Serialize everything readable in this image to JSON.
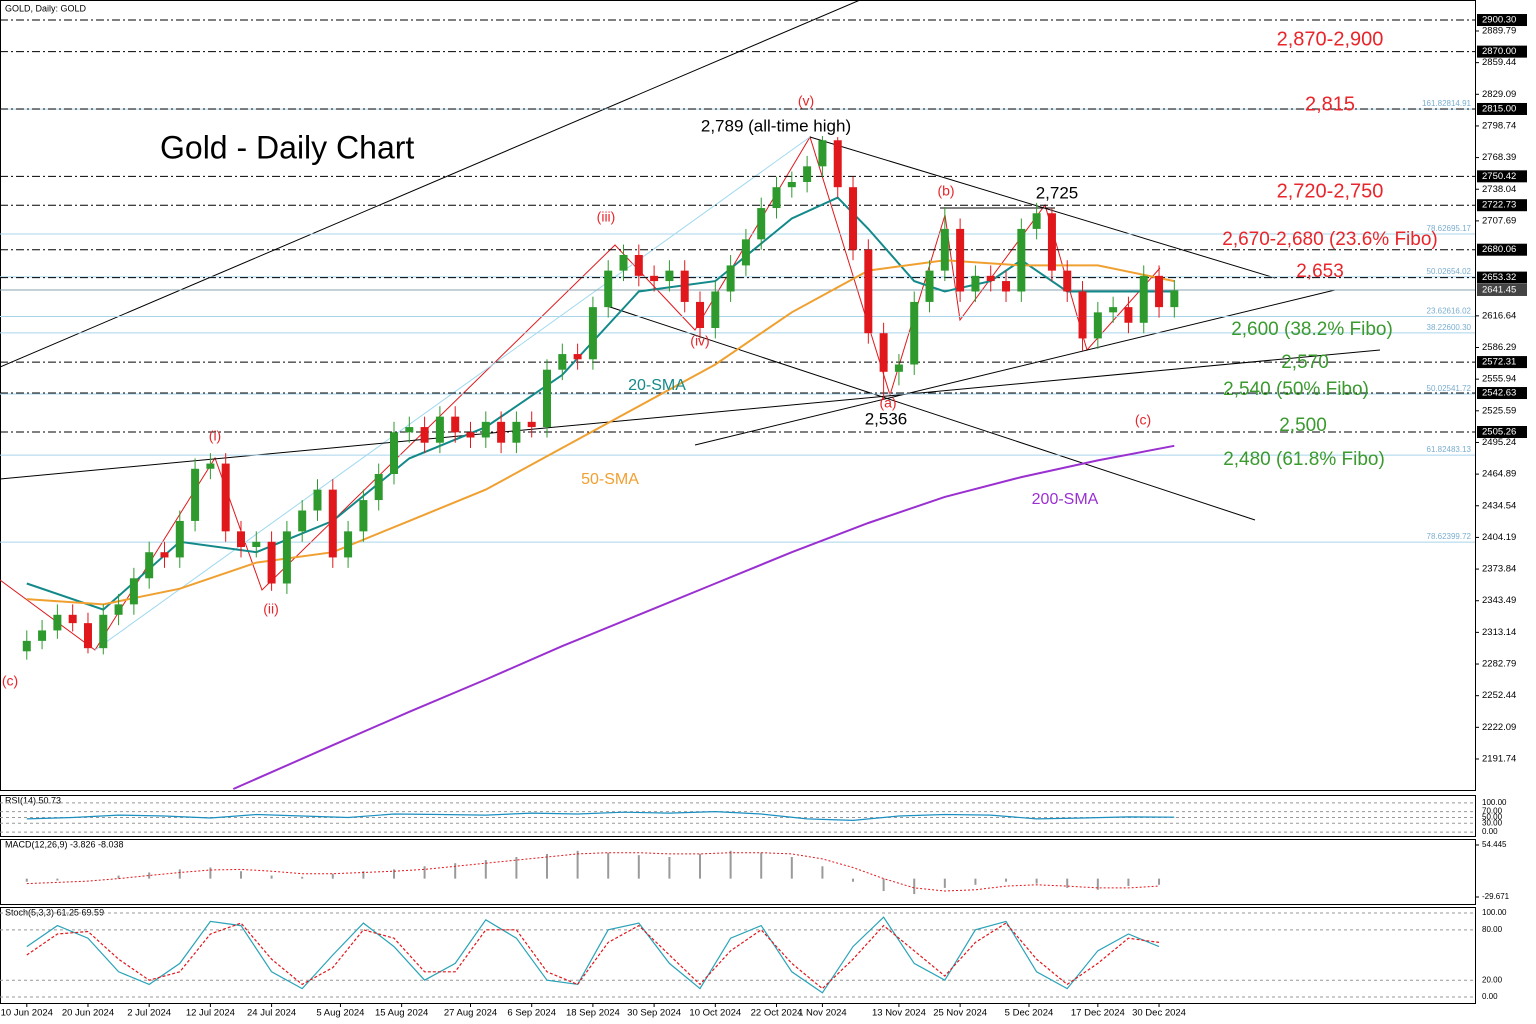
{
  "header": "GOLD, Daily: GOLD",
  "chart_data": [
    {
      "type": "candlestick",
      "title": "Gold - Daily Chart",
      "up_color": "#2e9a2e",
      "down_color": "#e0181c",
      "x": [
        0,
        2,
        4,
        6,
        8,
        10,
        12,
        14,
        16,
        18,
        20,
        22,
        24,
        26,
        28,
        30,
        32,
        34,
        36,
        38,
        40,
        42,
        44,
        46,
        48,
        50,
        52,
        54,
        56,
        58,
        60,
        62,
        64,
        66,
        68,
        70,
        72,
        74,
        76,
        78,
        80,
        82,
        84,
        86,
        88,
        90,
        92,
        94,
        96,
        98,
        100,
        102,
        104,
        106,
        108,
        110,
        112,
        114,
        116,
        118,
        120,
        122,
        124,
        126,
        128,
        130,
        132,
        134,
        136,
        138,
        140,
        142,
        144,
        146,
        148,
        150
      ],
      "open": [
        2295,
        2305,
        2315,
        2330,
        2322,
        2298,
        2330,
        2340,
        2365,
        2390,
        2385,
        2420,
        2470,
        2475,
        2410,
        2395,
        2400,
        2360,
        2410,
        2430,
        2450,
        2385,
        2410,
        2440,
        2465,
        2505,
        2510,
        2495,
        2520,
        2505,
        2500,
        2515,
        2495,
        2515,
        2510,
        2565,
        2580,
        2575,
        2625,
        2660,
        2675,
        2655,
        2650,
        2660,
        2630,
        2605,
        2640,
        2665,
        2690,
        2720,
        2740,
        2745,
        2760,
        2785,
        2740,
        2680,
        2600,
        2563,
        2570,
        2630,
        2660,
        2700,
        2640,
        2655,
        2650,
        2640,
        2700,
        2715,
        2660,
        2640,
        2595,
        2620,
        2625,
        2610,
        2655,
        2625
      ],
      "high": [
        2315,
        2325,
        2340,
        2340,
        2332,
        2340,
        2350,
        2375,
        2400,
        2400,
        2430,
        2480,
        2485,
        2485,
        2420,
        2410,
        2410,
        2420,
        2440,
        2460,
        2460,
        2420,
        2450,
        2475,
        2515,
        2520,
        2520,
        2530,
        2530,
        2515,
        2525,
        2525,
        2525,
        2525,
        2575,
        2590,
        2590,
        2635,
        2670,
        2685,
        2685,
        2665,
        2670,
        2670,
        2640,
        2650,
        2675,
        2700,
        2730,
        2750,
        2755,
        2770,
        2789,
        2788,
        2750,
        2690,
        2610,
        2580,
        2640,
        2670,
        2721,
        2710,
        2665,
        2665,
        2660,
        2710,
        2725,
        2720,
        2670,
        2650,
        2630,
        2635,
        2635,
        2665,
        2665,
        2651
      ],
      "low": [
        2287,
        2297,
        2307,
        2314,
        2293,
        2292,
        2320,
        2330,
        2355,
        2375,
        2375,
        2410,
        2460,
        2400,
        2385,
        2385,
        2353,
        2350,
        2400,
        2420,
        2375,
        2375,
        2400,
        2430,
        2455,
        2495,
        2485,
        2485,
        2495,
        2490,
        2490,
        2485,
        2485,
        2500,
        2500,
        2555,
        2565,
        2565,
        2615,
        2650,
        2645,
        2640,
        2640,
        2620,
        2595,
        2595,
        2630,
        2655,
        2680,
        2710,
        2730,
        2735,
        2750,
        2730,
        2670,
        2590,
        2536,
        2550,
        2560,
        2620,
        2650,
        2630,
        2630,
        2640,
        2630,
        2630,
        2690,
        2650,
        2630,
        2583,
        2585,
        2610,
        2600,
        2600,
        2615,
        2615
      ],
      "close": [
        2305,
        2315,
        2330,
        2322,
        2298,
        2330,
        2340,
        2365,
        2390,
        2385,
        2420,
        2470,
        2475,
        2410,
        2395,
        2400,
        2360,
        2410,
        2430,
        2450,
        2385,
        2410,
        2440,
        2465,
        2505,
        2510,
        2495,
        2520,
        2505,
        2500,
        2515,
        2495,
        2515,
        2510,
        2565,
        2580,
        2575,
        2625,
        2660,
        2675,
        2655,
        2650,
        2660,
        2630,
        2605,
        2640,
        2665,
        2690,
        2720,
        2740,
        2745,
        2760,
        2785,
        2740,
        2680,
        2600,
        2563,
        2570,
        2630,
        2660,
        2700,
        2640,
        2655,
        2650,
        2640,
        2700,
        2715,
        2660,
        2640,
        2595,
        2620,
        2625,
        2610,
        2655,
        2625,
        2641
      ],
      "xlim": [
        -3.5,
        189.3
      ],
      "xticks": [
        {
          "value": 0,
          "label": "10 Jun 2024"
        },
        {
          "value": 8,
          "label": "20 Jun 2024"
        },
        {
          "value": 16,
          "label": "2 Jul 2024"
        },
        {
          "value": 24,
          "label": "12 Jul 2024"
        },
        {
          "value": 32,
          "label": "24 Jul 2024"
        },
        {
          "value": 41,
          "label": "5 Aug 2024"
        },
        {
          "value": 49,
          "label": "15 Aug 2024"
        },
        {
          "value": 58,
          "label": "27 Aug 2024"
        },
        {
          "value": 66,
          "label": "6 Sep 2024"
        },
        {
          "value": 74,
          "label": "18 Sep 2024"
        },
        {
          "value": 82,
          "label": "30 Sep 2024"
        },
        {
          "value": 90,
          "label": "10 Oct 2024"
        },
        {
          "value": 98,
          "label": "22 Oct 2024"
        },
        {
          "value": 104,
          "label": "1 Nov 2024"
        },
        {
          "value": 114,
          "label": "13 Nov 2024"
        },
        {
          "value": 122,
          "label": "25 Nov 2024"
        },
        {
          "value": 131,
          "label": "5 Dec 2024"
        },
        {
          "value": 140,
          "label": "17 Dec 2024"
        },
        {
          "value": 148,
          "label": "30 Dec 2024"
        }
      ],
      "ylim": [
        2162,
        2914.7
      ],
      "yticks": [
        2889.79,
        2859.44,
        2829.09,
        2798.74,
        2768.39,
        2738.04,
        2707.69,
        2616.64,
        2586.29,
        2555.94,
        2525.59,
        2495.24,
        2464.89,
        2434.54,
        2404.19,
        2373.84,
        2343.49,
        2313.14,
        2282.79,
        2252.44,
        2222.09,
        2191.74
      ],
      "levels": [
        {
          "value": 2900.3,
          "label": "2900.30"
        },
        {
          "value": 2870,
          "label": "2870.00"
        },
        {
          "value": 2815,
          "label": "2815.00"
        },
        {
          "value": 2750.42,
          "label": "2750.42"
        },
        {
          "value": 2722.73,
          "label": "2722.73"
        },
        {
          "value": 2680.06,
          "label": "2680.06"
        },
        {
          "value": 2653.32,
          "label": "2653.32"
        },
        {
          "value": 2572.31,
          "label": "2572.31"
        },
        {
          "value": 2542.63,
          "label": "2542.63"
        },
        {
          "value": 2505.26,
          "label": "2505.26"
        }
      ],
      "current_price": {
        "value": 2641.45,
        "label": "2641.45"
      },
      "fibo": [
        {
          "pct": "161.8",
          "value": 2814.91
        },
        {
          "pct": "78.6",
          "value": 2695.17
        },
        {
          "pct": "50.0",
          "value": 2654.02
        },
        {
          "pct": "23.6",
          "value": 2616.02
        },
        {
          "pct": "38.2",
          "value": 2600.3,
          "value_label": "2600.30"
        },
        {
          "pct": "50.0",
          "value": 2541.72
        },
        {
          "pct": "61.8",
          "value": 2483.13
        },
        {
          "pct": "78.6",
          "value": 2399.72
        }
      ],
      "series": [
        {
          "name": "20-SMA",
          "color": "#14898a",
          "x": [
            0,
            10,
            20,
            30,
            40,
            50,
            60,
            70,
            80,
            90,
            100,
            106,
            110,
            116,
            120,
            126,
            130,
            136,
            140,
            150
          ],
          "values": [
            2360,
            2335,
            2400,
            2390,
            2420,
            2480,
            2510,
            2560,
            2640,
            2650,
            2710,
            2730,
            2700,
            2650,
            2640,
            2650,
            2670,
            2640,
            2640,
            2640
          ]
        },
        {
          "name": "50-SMA",
          "color": "#f0a030",
          "x": [
            0,
            10,
            20,
            30,
            40,
            50,
            60,
            70,
            80,
            90,
            100,
            110,
            120,
            130,
            140,
            150
          ],
          "values": [
            2345,
            2340,
            2355,
            2380,
            2390,
            2420,
            2450,
            2490,
            2530,
            2570,
            2620,
            2660,
            2670,
            2665,
            2665,
            2650
          ]
        },
        {
          "name": "200-SMA",
          "color": "#9b30d0",
          "x": [
            27,
            40,
            50,
            60,
            70,
            80,
            90,
            100,
            110,
            120,
            130,
            140,
            150
          ],
          "values": [
            2163,
            2205,
            2237,
            2268,
            2300,
            2330,
            2360,
            2390,
            2418,
            2443,
            2462,
            2478,
            2492
          ]
        }
      ],
      "annotations": [
        {
          "text": "2,870-2,900",
          "color": "#e8252a"
        },
        {
          "text": "2,815",
          "color": "#e8252a"
        },
        {
          "text": "2,720-2,750",
          "color": "#e8252a"
        },
        {
          "text": "2,670-2,680 (23.6% Fibo)",
          "color": "#e8252a"
        },
        {
          "text": "2,653",
          "color": "#e8252a"
        },
        {
          "text": "2,600 (38.2% Fibo)",
          "color": "#3a9a2e"
        },
        {
          "text": "2,570",
          "color": "#3a9a2e"
        },
        {
          "text": "2,540 (50% Fibo)",
          "color": "#3a9a2e"
        },
        {
          "text": "2,500",
          "color": "#3a9a2e"
        },
        {
          "text": "2,480 (61.8% Fibo)",
          "color": "#3a9a2e"
        },
        {
          "text": "2,789 (all-time high)",
          "color": "#000"
        },
        {
          "text": "2,725",
          "color": "#000"
        },
        {
          "text": "2,536",
          "color": "#000"
        },
        {
          "text": "(v)",
          "color": "#e8252a"
        },
        {
          "text": "(iii)",
          "color": "#e8252a"
        },
        {
          "text": "(i)",
          "color": "#e8252a"
        },
        {
          "text": "(ii)",
          "color": "#e8252a"
        },
        {
          "text": "(iv)",
          "color": "#e8252a"
        },
        {
          "text": "(b)",
          "color": "#e8252a"
        },
        {
          "text": "(c)",
          "color": "#e8252a"
        },
        {
          "text": "(c)",
          "color": "#e8252a"
        },
        {
          "text": "(a)",
          "color": "#e8252a"
        }
      ]
    },
    {
      "type": "line",
      "title": "RSI(14) 50.73",
      "x": [
        0,
        6,
        12,
        18,
        24,
        30,
        36,
        42,
        48,
        54,
        60,
        66,
        72,
        78,
        84,
        90,
        96,
        102,
        108,
        114,
        120,
        126,
        132,
        138,
        144,
        150
      ],
      "series": [
        {
          "color": "#1a8fc0",
          "values": [
            45,
            50,
            58,
            55,
            48,
            60,
            55,
            50,
            62,
            60,
            58,
            65,
            62,
            68,
            65,
            70,
            62,
            45,
            40,
            55,
            60,
            58,
            45,
            48,
            52,
            51
          ]
        }
      ],
      "ylim": [
        -10,
        120
      ],
      "yticks": [
        {
          "value": 100,
          "label": "100.00"
        },
        {
          "value": 70,
          "label": "70.00"
        },
        {
          "value": 50,
          "label": "50.00"
        },
        {
          "value": 30,
          "label": "30.00"
        },
        {
          "value": 0,
          "label": "0.00"
        }
      ]
    },
    {
      "type": "macd",
      "title": "MACD(12,26,9) -3.826 -8.038",
      "color": "#9a9a9a",
      "x": [
        0,
        4,
        8,
        12,
        16,
        20,
        24,
        28,
        32,
        36,
        40,
        44,
        48,
        52,
        56,
        60,
        64,
        68,
        72,
        76,
        80,
        84,
        88,
        92,
        96,
        100,
        104,
        108,
        112,
        116,
        120,
        124,
        128,
        132,
        136,
        140,
        144,
        148
      ],
      "values": [
        -5,
        -3,
        0,
        5,
        10,
        15,
        18,
        12,
        5,
        3,
        8,
        12,
        15,
        20,
        25,
        30,
        35,
        40,
        45,
        42,
        38,
        35,
        40,
        45,
        42,
        35,
        20,
        -5,
        -20,
        -25,
        -15,
        -10,
        -5,
        -8,
        -15,
        -18,
        -12,
        -10
      ],
      "series": [
        {
          "color": "#e0181c",
          "values": [
            -8,
            -6,
            -4,
            0,
            5,
            10,
            14,
            15,
            12,
            8,
            8,
            10,
            12,
            15,
            20,
            25,
            30,
            35,
            40,
            42,
            42,
            40,
            40,
            42,
            42,
            40,
            32,
            18,
            0,
            -15,
            -20,
            -18,
            -12,
            -10,
            -12,
            -15,
            -15,
            -12
          ]
        }
      ],
      "ylim": [
        -39.4,
        62.5
      ],
      "yticks": [
        {
          "value": 54.445,
          "label": "54.445"
        },
        {
          "value": -29.671,
          "label": "-29.671"
        }
      ]
    },
    {
      "type": "line",
      "title": "Stoch(5,3,3) 61.25 69.59",
      "x": [
        0,
        4,
        8,
        12,
        16,
        20,
        24,
        28,
        32,
        36,
        40,
        44,
        48,
        52,
        56,
        60,
        64,
        68,
        72,
        76,
        80,
        84,
        88,
        92,
        96,
        100,
        104,
        108,
        112,
        116,
        120,
        124,
        128,
        132,
        136,
        140,
        144,
        148
      ],
      "series": [
        {
          "color": "#2aa3b8",
          "values": [
            60,
            85,
            70,
            30,
            15,
            40,
            90,
            85,
            30,
            10,
            50,
            88,
            60,
            20,
            40,
            92,
            70,
            20,
            15,
            80,
            88,
            40,
            10,
            70,
            85,
            30,
            5,
            60,
            95,
            40,
            20,
            80,
            90,
            30,
            10,
            55,
            75,
            60
          ]
        },
        {
          "color": "#e0181c",
          "dashed": true,
          "values": [
            50,
            75,
            78,
            45,
            20,
            30,
            75,
            88,
            45,
            15,
            35,
            80,
            70,
            30,
            30,
            80,
            80,
            30,
            15,
            65,
            85,
            50,
            15,
            55,
            80,
            40,
            10,
            45,
            85,
            55,
            25,
            65,
            88,
            45,
            15,
            40,
            70,
            65
          ]
        }
      ],
      "ylim": [
        -7.1,
        106
      ],
      "yticks": [
        {
          "value": 100,
          "label": "100.00"
        },
        {
          "value": 80,
          "label": "80.00"
        },
        {
          "value": 20,
          "label": "20.00"
        },
        {
          "value": 0,
          "label": "0.00"
        }
      ]
    }
  ]
}
